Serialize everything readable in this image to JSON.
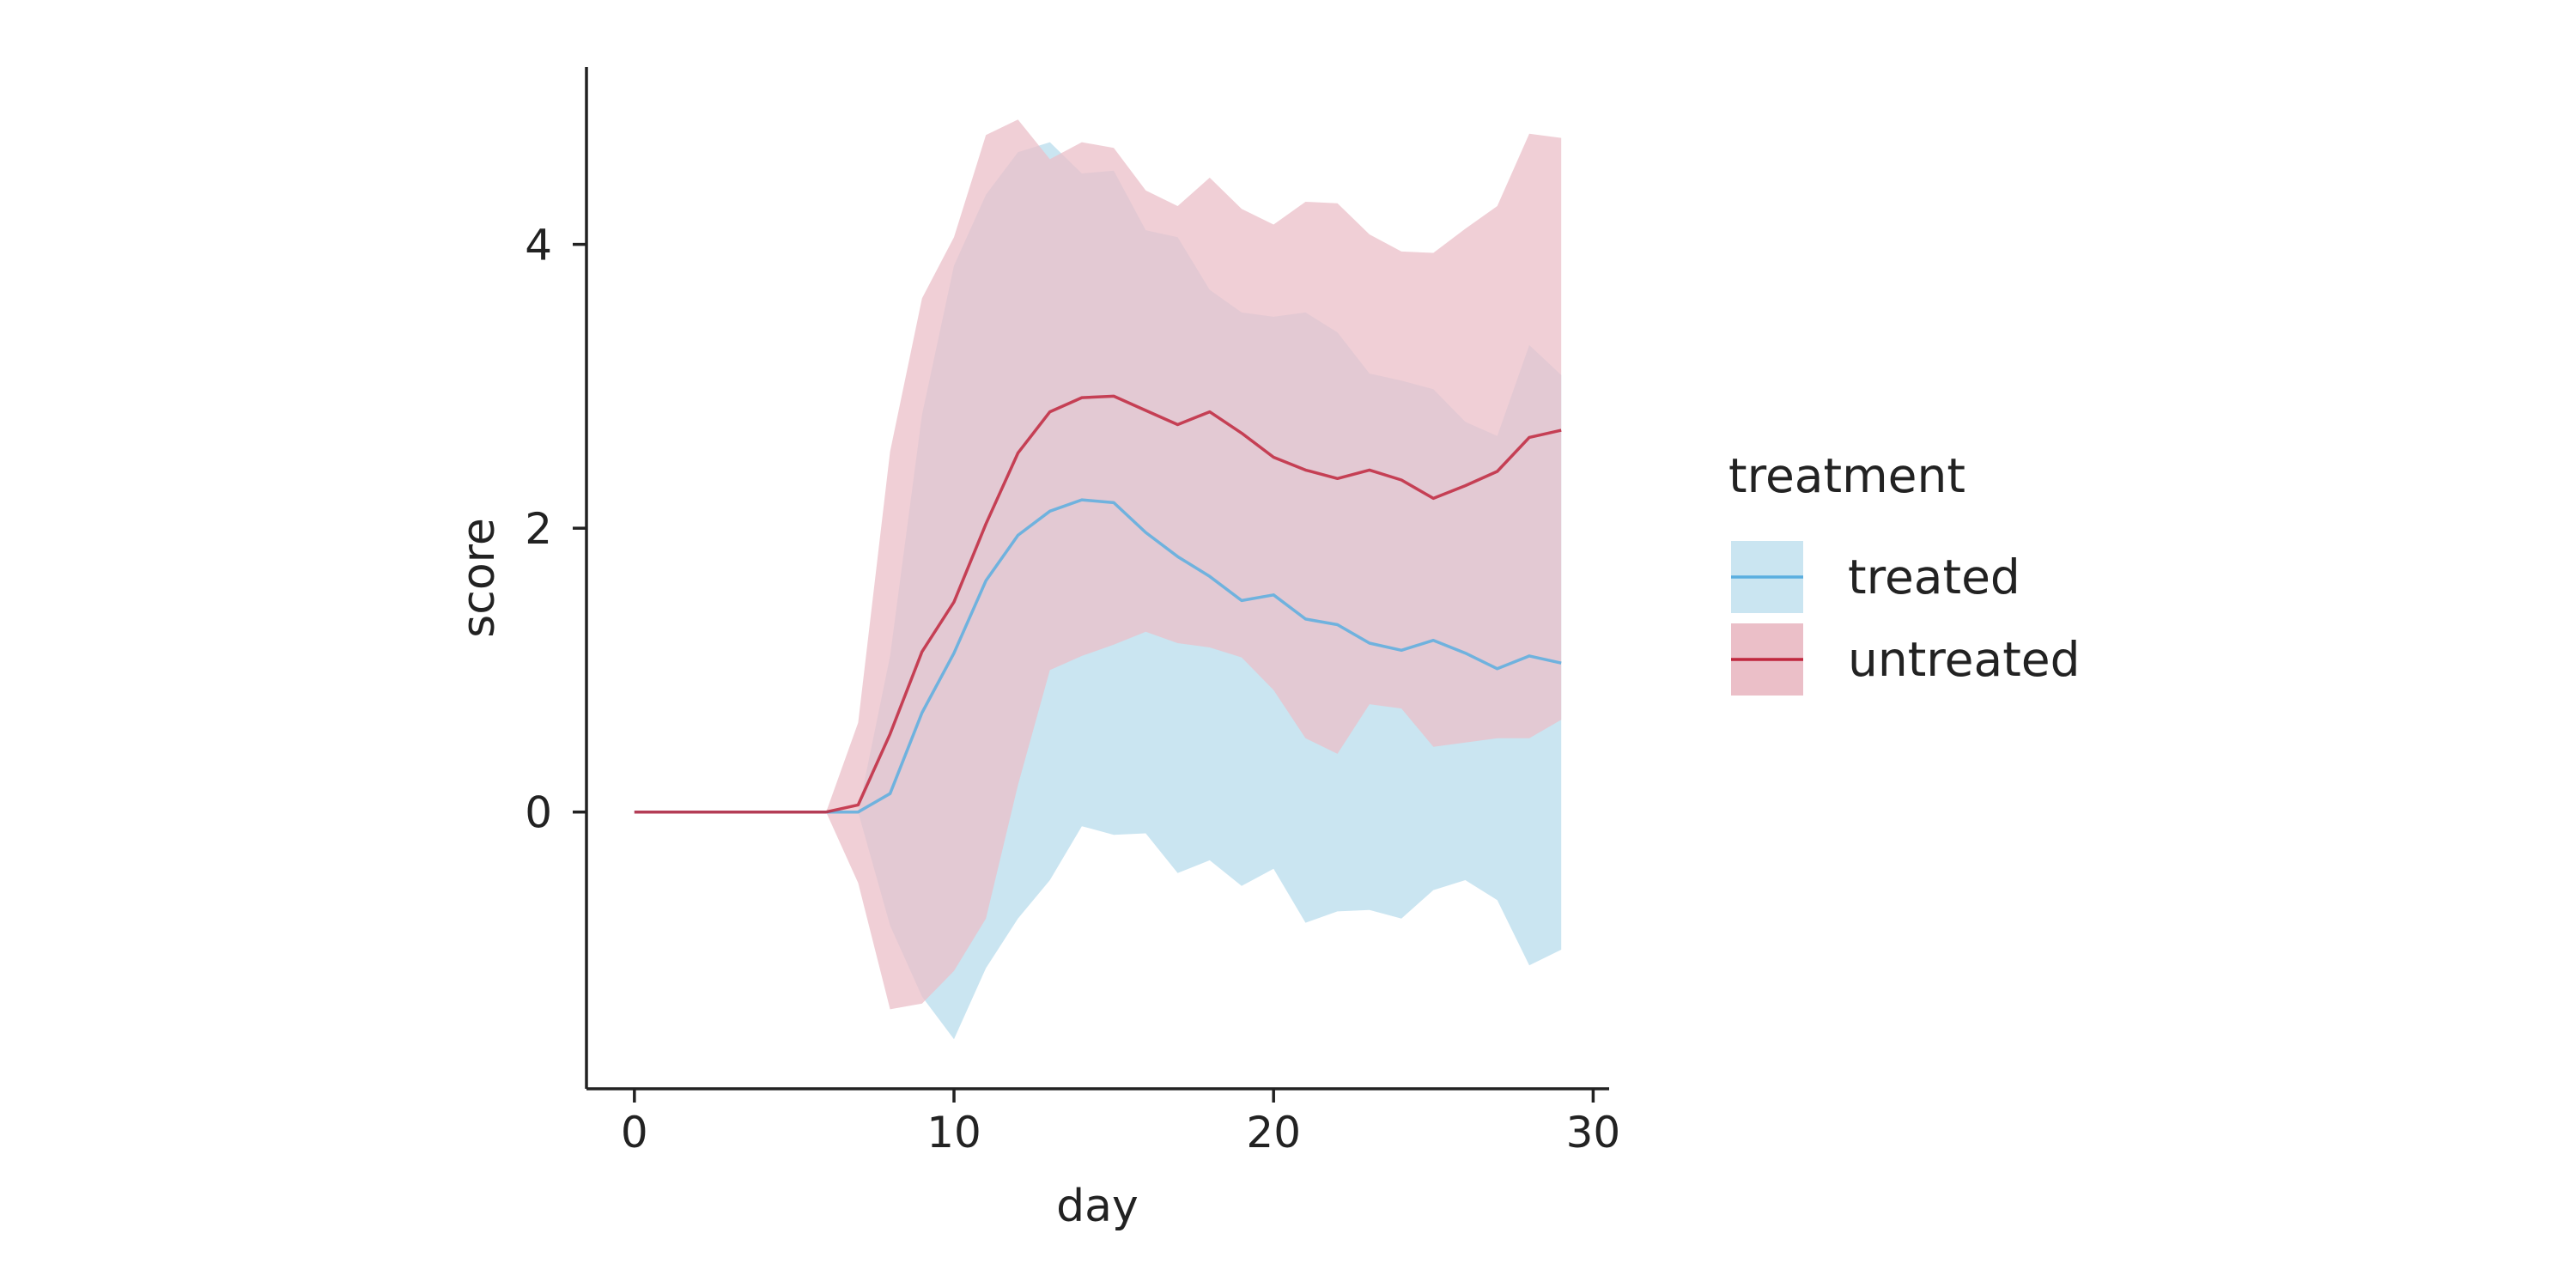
{
  "chart_data": {
    "type": "line",
    "title": "",
    "xlabel": "day",
    "ylabel": "score",
    "xlim": [
      -1.5,
      30.5
    ],
    "ylim": [
      -1.95,
      5.25
    ],
    "xticks": [
      0,
      10,
      20,
      30
    ],
    "yticks": [
      0,
      2,
      4
    ],
    "grid": false,
    "legend": {
      "title": "treatment",
      "placement": "right"
    },
    "x": [
      0,
      1,
      2,
      3,
      4,
      5,
      6,
      7,
      8,
      9,
      10,
      11,
      12,
      13,
      14,
      15,
      16,
      17,
      18,
      19,
      20,
      21,
      22,
      23,
      24,
      25,
      26,
      27,
      28,
      29
    ],
    "series": [
      {
        "name": "treated",
        "color": "#5aaedf",
        "band_color": "#cae5f1",
        "mean": [
          0,
          0,
          0,
          0,
          0,
          0,
          0,
          0.0,
          0.13,
          0.7,
          1.12,
          1.63,
          1.95,
          2.12,
          2.2,
          2.18,
          1.97,
          1.8,
          1.66,
          1.49,
          1.53,
          1.36,
          1.32,
          1.19,
          1.14,
          1.21,
          1.12,
          1.01,
          1.1,
          1.05
        ],
        "lower": [
          0,
          0,
          0,
          0,
          0,
          0,
          0,
          0.0,
          -0.8,
          -1.3,
          -1.6,
          -1.1,
          -0.75,
          -0.48,
          -0.1,
          -0.16,
          -0.15,
          -0.43,
          -0.34,
          -0.52,
          -0.4,
          -0.78,
          -0.7,
          -0.69,
          -0.75,
          -0.55,
          -0.48,
          -0.62,
          -1.08,
          -0.97
        ],
        "upper": [
          0,
          0,
          0,
          0,
          0,
          0,
          0,
          0.0,
          1.1,
          2.8,
          3.85,
          4.35,
          4.65,
          4.72,
          4.5,
          4.52,
          4.1,
          4.05,
          3.68,
          3.52,
          3.49,
          3.52,
          3.38,
          3.09,
          3.04,
          2.98,
          2.75,
          2.65,
          3.29,
          3.08
        ]
      },
      {
        "name": "untreated",
        "color": "#c0273d",
        "band_color": "#ebbfc8",
        "mean": [
          0,
          0,
          0,
          0,
          0,
          0,
          0,
          0.05,
          0.55,
          1.13,
          1.48,
          2.03,
          2.53,
          2.82,
          2.92,
          2.93,
          2.83,
          2.73,
          2.82,
          2.67,
          2.5,
          2.41,
          2.35,
          2.41,
          2.34,
          2.21,
          2.3,
          2.4,
          2.64,
          2.69
        ],
        "lower": [
          0,
          0,
          0,
          0,
          0,
          0,
          0,
          -0.5,
          -1.39,
          -1.35,
          -1.12,
          -0.75,
          0.19,
          1.0,
          1.1,
          1.18,
          1.27,
          1.19,
          1.16,
          1.09,
          0.86,
          0.52,
          0.41,
          0.76,
          0.73,
          0.46,
          0.49,
          0.52,
          0.52,
          0.65
        ],
        "upper": [
          0,
          0,
          0,
          0,
          0,
          0,
          0,
          0.63,
          2.54,
          3.62,
          4.05,
          4.77,
          4.88,
          4.6,
          4.72,
          4.68,
          4.38,
          4.27,
          4.47,
          4.25,
          4.14,
          4.3,
          4.29,
          4.07,
          3.95,
          3.94,
          4.11,
          4.27,
          4.78,
          4.75
        ]
      }
    ]
  }
}
